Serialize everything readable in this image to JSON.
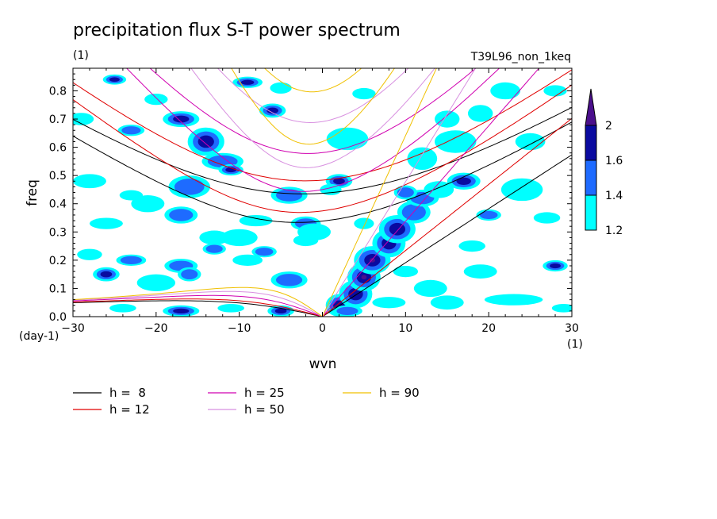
{
  "chart_data": {
    "type": "heatmap",
    "title": "precipitation flux S-T power spectrum",
    "title_unit": "(1)",
    "run_label": "T39L96_non_1keq",
    "xlabel": "wvn",
    "x_unit": "(1)",
    "ylabel": "freq",
    "y_unit": "(day-1)",
    "xlim": [
      -30,
      30
    ],
    "ylim": [
      0,
      0.88
    ],
    "x_ticks": [
      -30,
      -20,
      -10,
      0,
      10,
      20,
      30
    ],
    "y_ticks": [
      0.0,
      0.1,
      0.2,
      0.3,
      0.4,
      0.5,
      0.6,
      0.7,
      0.8
    ],
    "x_tick_labels": [
      "−30",
      "−20",
      "−10",
      "0",
      "10",
      "20",
      "30"
    ],
    "y_tick_labels": [
      "0.0",
      "0.1",
      "0.2",
      "0.3",
      "0.4",
      "0.5",
      "0.6",
      "0.7",
      "0.8"
    ],
    "colorbar": {
      "levels": [
        1.2,
        1.4,
        1.6,
        2
      ],
      "labels": [
        "1.2",
        "1.4",
        "1.6",
        "2"
      ],
      "colors": [
        "#00ffff",
        "#1e6bff",
        "#0a0aa0",
        "#4b0f8c"
      ]
    },
    "dispersion_curves": [
      {
        "name": "h =  8",
        "h": 8,
        "color": "#000000"
      },
      {
        "name": "h = 12",
        "h": 12,
        "color": "#e00000"
      },
      {
        "name": "h = 25",
        "h": 25,
        "color": "#d000b0"
      },
      {
        "name": "h = 50",
        "h": 50,
        "color": "#d890e0"
      },
      {
        "name": "h = 90",
        "h": 90,
        "color": "#f0c000"
      }
    ],
    "blobs": [
      [
        -29,
        0.7,
        1.5,
        0.022,
        1
      ],
      [
        -25,
        0.84,
        1.4,
        0.018,
        3
      ],
      [
        -23,
        0.66,
        1.6,
        0.02,
        2
      ],
      [
        -20,
        0.77,
        1.4,
        0.02,
        1
      ],
      [
        -17,
        0.7,
        2.2,
        0.028,
        3
      ],
      [
        -16,
        0.46,
        2.5,
        0.04,
        2
      ],
      [
        -14,
        0.62,
        2.2,
        0.05,
        3
      ],
      [
        -12,
        0.55,
        2.5,
        0.03,
        2
      ],
      [
        -11,
        0.52,
        1.5,
        0.02,
        3
      ],
      [
        -9,
        0.83,
        1.8,
        0.02,
        3
      ],
      [
        -6,
        0.73,
        1.6,
        0.025,
        3
      ],
      [
        -5,
        0.81,
        1.3,
        0.02,
        1
      ],
      [
        -26,
        0.33,
        2.0,
        0.02,
        1
      ],
      [
        -28,
        0.48,
        2.0,
        0.025,
        1
      ],
      [
        -23,
        0.43,
        1.4,
        0.018,
        1
      ],
      [
        -21,
        0.4,
        2.0,
        0.03,
        1
      ],
      [
        -17,
        0.36,
        2.0,
        0.03,
        2
      ],
      [
        -13,
        0.28,
        1.8,
        0.025,
        1
      ],
      [
        -10,
        0.28,
        2.2,
        0.03,
        1
      ],
      [
        -8,
        0.34,
        2.0,
        0.02,
        1
      ],
      [
        -4,
        0.43,
        2.2,
        0.03,
        2
      ],
      [
        -2,
        0.33,
        1.8,
        0.025,
        2
      ],
      [
        -1,
        0.3,
        2.0,
        0.03,
        1
      ],
      [
        2,
        0.48,
        1.6,
        0.025,
        3
      ],
      [
        3,
        0.63,
        2.5,
        0.04,
        1
      ],
      [
        5,
        0.79,
        1.4,
        0.02,
        1
      ],
      [
        1,
        0.45,
        1.3,
        0.02,
        1
      ],
      [
        -26,
        0.15,
        1.6,
        0.025,
        3
      ],
      [
        -23,
        0.2,
        1.8,
        0.02,
        2
      ],
      [
        -20,
        0.12,
        2.3,
        0.03,
        1
      ],
      [
        -17,
        0.18,
        2.0,
        0.025,
        2
      ],
      [
        -16,
        0.15,
        1.4,
        0.025,
        2
      ],
      [
        -13,
        0.24,
        1.4,
        0.02,
        2
      ],
      [
        -9,
        0.2,
        1.8,
        0.02,
        1
      ],
      [
        -7,
        0.23,
        1.5,
        0.02,
        2
      ],
      [
        -4,
        0.13,
        2.2,
        0.03,
        2
      ],
      [
        -5,
        0.02,
        1.6,
        0.02,
        3
      ],
      [
        -17,
        0.02,
        2.2,
        0.02,
        3
      ],
      [
        -24,
        0.03,
        1.6,
        0.015,
        1
      ],
      [
        -11,
        0.03,
        1.6,
        0.015,
        1
      ],
      [
        -28,
        0.22,
        1.5,
        0.02,
        1
      ],
      [
        -2,
        0.27,
        1.5,
        0.02,
        1
      ],
      [
        2,
        0.04,
        1.6,
        0.04,
        3
      ],
      [
        4,
        0.08,
        2.0,
        0.05,
        3
      ],
      [
        5,
        0.14,
        2.0,
        0.05,
        4
      ],
      [
        6,
        0.2,
        2.2,
        0.05,
        4
      ],
      [
        8,
        0.26,
        2.0,
        0.05,
        3
      ],
      [
        9,
        0.31,
        2.2,
        0.05,
        3
      ],
      [
        11,
        0.37,
        2.0,
        0.04,
        2
      ],
      [
        12,
        0.42,
        2.0,
        0.03,
        2
      ],
      [
        14,
        0.45,
        1.8,
        0.03,
        1
      ],
      [
        17,
        0.48,
        2.0,
        0.03,
        3
      ],
      [
        10,
        0.44,
        1.4,
        0.025,
        2
      ],
      [
        12,
        0.56,
        1.8,
        0.04,
        1
      ],
      [
        16,
        0.62,
        2.5,
        0.04,
        1
      ],
      [
        15,
        0.7,
        1.5,
        0.03,
        1
      ],
      [
        19,
        0.72,
        1.5,
        0.03,
        1
      ],
      [
        22,
        0.8,
        1.8,
        0.03,
        1
      ],
      [
        28,
        0.8,
        1.4,
        0.02,
        1
      ],
      [
        24,
        0.45,
        2.5,
        0.04,
        1
      ],
      [
        25,
        0.62,
        1.8,
        0.03,
        1
      ],
      [
        20,
        0.36,
        1.5,
        0.02,
        2
      ],
      [
        19,
        0.16,
        2.0,
        0.025,
        1
      ],
      [
        23,
        0.06,
        3.5,
        0.02,
        1
      ],
      [
        28,
        0.18,
        1.5,
        0.02,
        3
      ],
      [
        29,
        0.03,
        1.4,
        0.015,
        1
      ],
      [
        15,
        0.05,
        2.0,
        0.025,
        1
      ],
      [
        8,
        0.05,
        2.0,
        0.02,
        1
      ],
      [
        13,
        0.1,
        2.0,
        0.03,
        1
      ],
      [
        18,
        0.25,
        1.6,
        0.02,
        1
      ],
      [
        27,
        0.35,
        1.6,
        0.02,
        1
      ],
      [
        5,
        0.33,
        1.2,
        0.02,
        1
      ],
      [
        3,
        0.02,
        1.8,
        0.02,
        2
      ],
      [
        10,
        0.16,
        1.5,
        0.02,
        1
      ]
    ]
  },
  "legend": {
    "items": [
      {
        "label": "h =  8",
        "color": "#000000"
      },
      {
        "label": "h = 12",
        "color": "#e00000"
      },
      {
        "label": "h = 25",
        "color": "#d000b0"
      },
      {
        "label": "h = 50",
        "color": "#d890e0"
      },
      {
        "label": "h = 90",
        "color": "#f0c000"
      }
    ]
  }
}
